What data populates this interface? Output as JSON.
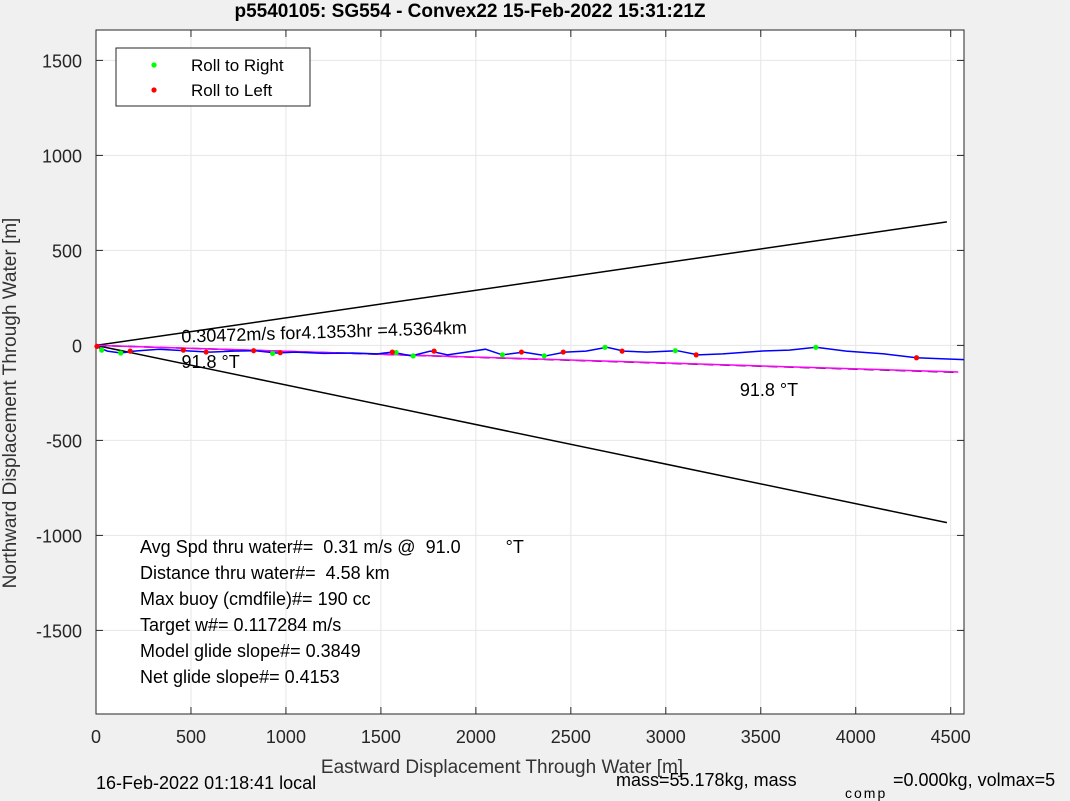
{
  "chart_data": {
    "type": "line",
    "title": "p5540105: SG554 - Convex22 15-Feb-2022 15:31:21Z",
    "xlabel": "Eastward Displacement Through Water [m]",
    "ylabel": "Northward Displacement Through Water [m]",
    "xlim": [
      0,
      4570
    ],
    "ylim": [
      -1940,
      1660
    ],
    "xticks": [
      0,
      500,
      1000,
      1500,
      2000,
      2500,
      3000,
      3500,
      4000,
      4500
    ],
    "yticks": [
      1500,
      1000,
      500,
      0,
      -500,
      -1000,
      -1500
    ],
    "grid": true,
    "legend_position": "top-left",
    "legend": [
      {
        "label": "Roll to Right",
        "color": "#00ff00"
      },
      {
        "label": "Roll to Left",
        "color": "#ff0000"
      }
    ],
    "cone_lines": [
      {
        "x": [
          0,
          4480
        ],
        "y": [
          0,
          650
        ],
        "color": "#000000"
      },
      {
        "x": [
          0,
          4480
        ],
        "y": [
          0,
          -933
        ],
        "color": "#000000"
      }
    ],
    "course_lines": [
      {
        "x": [
          0,
          4540
        ],
        "y": [
          0,
          -142
        ],
        "color": "#000000",
        "dash": "10,6"
      },
      {
        "x": [
          0,
          4540
        ],
        "y": [
          0,
          -140
        ],
        "color": "#ff00ff"
      }
    ],
    "track": {
      "color": "#0000ff",
      "x": [
        0,
        60,
        130,
        200,
        330,
        470,
        600,
        720,
        840,
        950,
        1050,
        1200,
        1350,
        1480,
        1560,
        1660,
        1760,
        1850,
        1950,
        2050,
        2140,
        2250,
        2370,
        2470,
        2580,
        2690,
        2780,
        2900,
        3060,
        3170,
        3300,
        3500,
        3650,
        3790,
        3950,
        4150,
        4320,
        4450,
        4570
      ],
      "y": [
        -5,
        -30,
        -40,
        -30,
        -20,
        -28,
        -35,
        -30,
        -28,
        -40,
        -35,
        -42,
        -40,
        -45,
        -35,
        -55,
        -30,
        -50,
        -35,
        -20,
        -50,
        -35,
        -55,
        -35,
        -30,
        -10,
        -30,
        -35,
        -28,
        -50,
        -45,
        -30,
        -25,
        -10,
        -30,
        -45,
        -65,
        -70,
        -75
      ]
    },
    "roll_right_points": {
      "color": "#00ff00",
      "x": [
        30,
        130,
        930,
        1580,
        1670,
        2140,
        2360,
        2680,
        3050,
        3790
      ],
      "y": [
        -25,
        -40,
        -42,
        -38,
        -55,
        -50,
        -55,
        -10,
        -28,
        -10
      ]
    },
    "roll_left_points": {
      "color": "#ff0000",
      "x": [
        5,
        180,
        460,
        580,
        830,
        970,
        1560,
        1780,
        2240,
        2460,
        2770,
        3160,
        4320
      ],
      "y": [
        -5,
        -30,
        -25,
        -35,
        -28,
        -38,
        -35,
        -30,
        -35,
        -35,
        -30,
        -50,
        -65
      ]
    },
    "annotations": [
      {
        "text": "0.30472m/s for4.1353hr =4.5364km",
        "x": 450,
        "y": 15,
        "rotate": -1.8
      },
      {
        "text": "91.8 °T",
        "x": 450,
        "y": -120
      },
      {
        "text": "91.8 °T",
        "x": 3390,
        "y": -265
      }
    ],
    "info_lines": [
      "Avg Spd thru water#=  0.31 m/s @  91.0         °T",
      "Distance thru water#=  4.58 km",
      "Max buoy (cmdfile)#= 190 cc",
      "Target w#= 0.117284 m/s",
      "Model glide slope#= 0.3849",
      "Net glide slope#= 0.4153"
    ]
  },
  "footer": {
    "local_time": "16-Feb-2022 01:18:41 local",
    "mass_text": "mass=55.178kg, mass",
    "comp_sub": "comp",
    "comp_text": "=0.000kg, volmax=5"
  }
}
